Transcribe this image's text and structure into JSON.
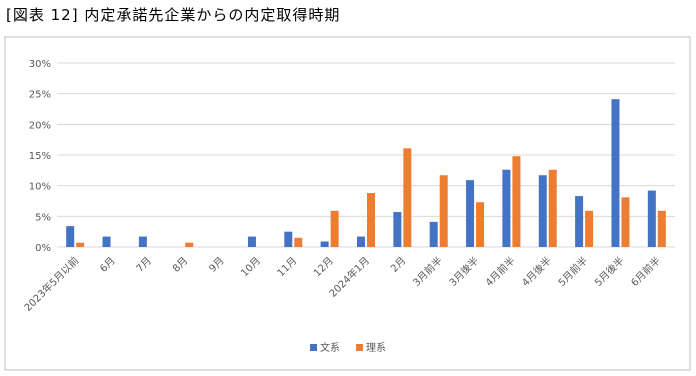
{
  "chart_data": {
    "type": "bar",
    "title": "[図表 12] 内定承諾先企業からの内定取得時期",
    "categories": [
      "2023年5月以前",
      "6月",
      "7月",
      "8月",
      "9月",
      "10月",
      "11月",
      "12月",
      "2024年1月",
      "2月",
      "3月前半",
      "3月後半",
      "4月前半",
      "4月後半",
      "5月前半",
      "5月後半",
      "6月前半"
    ],
    "series": [
      {
        "name": "文系",
        "color": "#4472c4",
        "values": [
          3.4,
          1.7,
          1.7,
          0,
          0,
          1.7,
          2.5,
          0.9,
          1.7,
          5.7,
          4.1,
          10.9,
          12.6,
          11.7,
          8.3,
          24.1,
          9.2
        ]
      },
      {
        "name": "理系",
        "color": "#ed7d31",
        "values": [
          0.7,
          0,
          0,
          0.7,
          0,
          0,
          1.5,
          5.9,
          8.8,
          16.1,
          11.7,
          7.3,
          14.8,
          12.6,
          5.9,
          8.1,
          5.9
        ]
      }
    ],
    "ylim": [
      0,
      30
    ],
    "yticks": [
      {
        "value": 0,
        "label": "0%"
      },
      {
        "value": 5,
        "label": "5%"
      },
      {
        "value": 10,
        "label": "10%"
      },
      {
        "value": 15,
        "label": "15%"
      },
      {
        "value": 20,
        "label": "20%"
      },
      {
        "value": 25,
        "label": "25%"
      },
      {
        "value": 30,
        "label": "30%"
      }
    ],
    "grid": true
  }
}
